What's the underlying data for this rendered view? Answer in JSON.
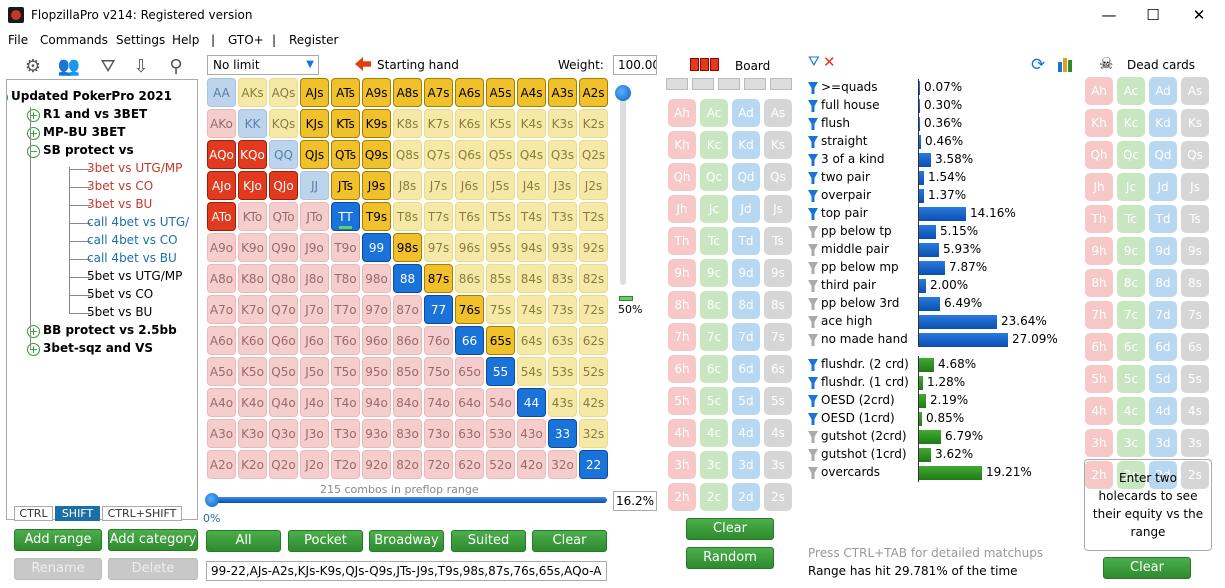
{
  "window": {
    "title": "FlopzillaPro v214: Registered version",
    "minimize": "—",
    "maximize": "☐",
    "close": "✕"
  },
  "menu": [
    "File",
    "Commands",
    "Settings",
    "Help",
    "|",
    "GTO+",
    "|",
    "Register"
  ],
  "tree": [
    {
      "label": "Updated PokerPro 2021",
      "level": 0,
      "bold": true,
      "expander": "−"
    },
    {
      "label": "R1 and vs 3BET",
      "level": 1,
      "bold": true,
      "expander": "+"
    },
    {
      "label": "MP-BU 3BET",
      "level": 1,
      "bold": true,
      "expander": "+"
    },
    {
      "label": "SB protect vs",
      "level": 1,
      "bold": true,
      "expander": "−"
    },
    {
      "label": "3bet vs UTG/MP",
      "level": 2,
      "color": "red"
    },
    {
      "label": "3bet vs CO",
      "level": 2,
      "color": "red"
    },
    {
      "label": "3bet vs BU",
      "level": 2,
      "color": "red"
    },
    {
      "label": "call 4bet vs UTG/",
      "level": 2,
      "color": "blue"
    },
    {
      "label": "call 4bet vs CO",
      "level": 2,
      "color": "blue"
    },
    {
      "label": "call 4bet vs BU",
      "level": 2,
      "color": "blue"
    },
    {
      "label": "5bet vs UTG/MP",
      "level": 2,
      "color": "black"
    },
    {
      "label": "5bet vs CO",
      "level": 2,
      "color": "black"
    },
    {
      "label": "5bet vs BU",
      "level": 2,
      "color": "black"
    },
    {
      "label": "BB protect vs 2.5bb",
      "level": 1,
      "bold": true,
      "expander": "+"
    },
    {
      "label": "3bet-sqz and VS",
      "level": 1,
      "bold": true,
      "expander": "+"
    }
  ],
  "modifiers": [
    "CTRL",
    "SHIFT",
    "CTRL+SHIFT"
  ],
  "left_buttons": {
    "add_range": "Add range",
    "add_category": "Add category",
    "rename": "Rename",
    "delete": "Delete"
  },
  "range": {
    "limit_select": "No limit",
    "starting_hand_label": "Starting hand",
    "weight_label": "Weight:",
    "weight_value": "100.00",
    "combos_text": "215 combos in preflop range",
    "slider_left": "0%",
    "percent": "16.2%",
    "vslider_value": "50%",
    "range_text": "99-22,AJs-A2s,KJs-K9s,QJs-Q9s,JTs-J9s,T9s,98s,87s,76s,65s,AQo-A",
    "ranks": [
      "A",
      "K",
      "Q",
      "J",
      "T",
      "9",
      "8",
      "7",
      "6",
      "5",
      "4",
      "3",
      "2"
    ],
    "selected": [
      "AJs",
      "ATs",
      "A9s",
      "A8s",
      "A7s",
      "A6s",
      "A5s",
      "A4s",
      "A3s",
      "A2s",
      "KJs",
      "KTs",
      "K9s",
      "QJs",
      "QTs",
      "Q9s",
      "JTs",
      "J9s",
      "T9s",
      "98s",
      "87s",
      "76s",
      "65s",
      "AQo",
      "AJo",
      "ATo",
      "KQo",
      "KJo",
      "QJo",
      "TT",
      "99",
      "88",
      "77",
      "66",
      "55",
      "44",
      "33",
      "22"
    ],
    "buttons": [
      "All",
      "Pocket",
      "Broadway",
      "Suited",
      "Clear"
    ]
  },
  "board": {
    "label": "Board",
    "ranks": [
      "A",
      "K",
      "Q",
      "J",
      "T",
      "9",
      "8",
      "7",
      "6",
      "5",
      "4",
      "3",
      "2"
    ],
    "suits": [
      "h",
      "c",
      "d",
      "s"
    ],
    "clear": "Clear",
    "random": "Random",
    "hint": "Press CTRL+TAB for detailed matchups",
    "hit": "Range has hit 29.781% of the time"
  },
  "stats": [
    {
      "label": ">=quads",
      "value": "0.07%",
      "pct": 0.07,
      "active": true
    },
    {
      "label": "full house",
      "value": "0.30%",
      "pct": 0.3,
      "active": true
    },
    {
      "label": "flush",
      "value": "0.36%",
      "pct": 0.36,
      "active": true
    },
    {
      "label": "straight",
      "value": "0.46%",
      "pct": 0.46,
      "active": true
    },
    {
      "label": "3 of a kind",
      "value": "3.58%",
      "pct": 3.58,
      "active": true
    },
    {
      "label": "two pair",
      "value": "1.54%",
      "pct": 1.54,
      "active": true
    },
    {
      "label": "overpair",
      "value": "1.37%",
      "pct": 1.37,
      "active": true
    },
    {
      "label": "top pair",
      "value": "14.16%",
      "pct": 14.16,
      "active": true
    },
    {
      "label": "pp below tp",
      "value": "5.15%",
      "pct": 5.15,
      "active": false
    },
    {
      "label": "middle pair",
      "value": "5.93%",
      "pct": 5.93,
      "active": false
    },
    {
      "label": "pp below mp",
      "value": "7.87%",
      "pct": 7.87,
      "active": false
    },
    {
      "label": "third pair",
      "value": "2.00%",
      "pct": 2.0,
      "active": false
    },
    {
      "label": "pp below 3rd",
      "value": "6.49%",
      "pct": 6.49,
      "active": false
    },
    {
      "label": "ace high",
      "value": "23.64%",
      "pct": 23.64,
      "active": false
    },
    {
      "label": "no made hand",
      "value": "27.09%",
      "pct": 27.09,
      "active": false
    }
  ],
  "draws": [
    {
      "label": "flushdr. (2 crd)",
      "value": "4.68%",
      "pct": 4.68,
      "active": true
    },
    {
      "label": "flushdr. (1 crd)",
      "value": "1.28%",
      "pct": 1.28,
      "active": true
    },
    {
      "label": "OESD (2crd)",
      "value": "2.19%",
      "pct": 2.19,
      "active": true
    },
    {
      "label": "OESD (1crd)",
      "value": "0.85%",
      "pct": 0.85,
      "active": true
    },
    {
      "label": "gutshot (2crd)",
      "value": "6.79%",
      "pct": 6.79,
      "active": false
    },
    {
      "label": "gutshot (1crd)",
      "value": "3.62%",
      "pct": 3.62,
      "active": false
    },
    {
      "label": "overcards",
      "value": "19.21%",
      "pct": 19.21,
      "active": false
    }
  ],
  "dead": {
    "label": "Dead cards",
    "hint": "Enter two holecards to see their equity vs the range",
    "clear": "Clear"
  },
  "colors": {
    "pair": "#1a73d9",
    "suited": "#f0c12b",
    "offsuit": "#e23a1f",
    "green": "#2e8b2e"
  }
}
